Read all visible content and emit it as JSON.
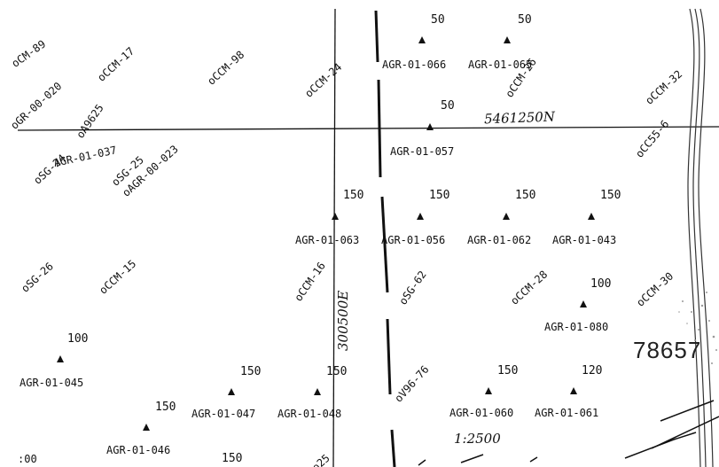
{
  "map": {
    "scale": "1:2500",
    "northing_label": "5461250N",
    "easting_label": "300500E",
    "sheet_number": "78657",
    "samples": [
      {
        "id": "AGR-01-066",
        "depth": "50"
      },
      {
        "id": "AGR-01-065",
        "depth": "50"
      },
      {
        "id": "AGR-01-057",
        "depth": "50"
      },
      {
        "id": "AGR-01-063",
        "depth": "150"
      },
      {
        "id": "AGR-01-056",
        "depth": "150"
      },
      {
        "id": "AGR-01-062",
        "depth": "150"
      },
      {
        "id": "AGR-01-043",
        "depth": "150"
      },
      {
        "id": "AGR-01-080",
        "depth": "100"
      },
      {
        "id": "AGR-01-045",
        "depth": "100"
      },
      {
        "id": "AGR-01-047",
        "depth": "150"
      },
      {
        "id": "AGR-01-048",
        "depth": "150"
      },
      {
        "id": "AGR-01-060",
        "depth": "150"
      },
      {
        "id": "AGR-01-061",
        "depth": "120"
      },
      {
        "id": "AGR-01-046",
        "depth": "150"
      },
      {
        "id": "AGR-01-037",
        "depth": ""
      }
    ],
    "drill_holes": [
      "CM-89",
      "CCM-17",
      "CCM-98",
      "CCM-24",
      "CCM-26",
      "CCM-32",
      "GR-00-020",
      "A9625",
      "CC55-6",
      "SG-24",
      "SG-25",
      "AGR-00-023",
      "SG-26",
      "CCM-15",
      "CCM-16",
      "SG-62",
      "CCM-28",
      "CCM-30",
      "V96-76"
    ],
    "edge_labels": {
      "bottom_left_depth": ":00",
      "bottom_depth": "150",
      "bottom_id_fragment": "25"
    }
  }
}
